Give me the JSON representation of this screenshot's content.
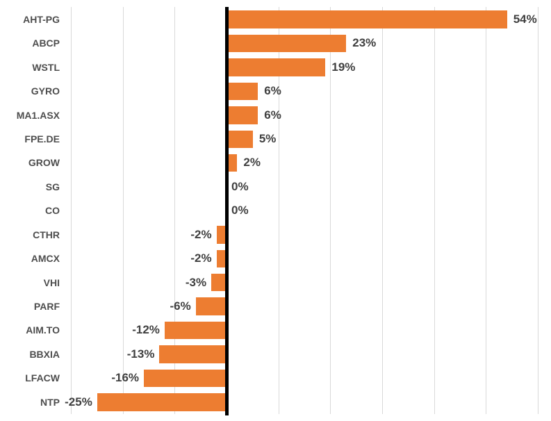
{
  "chart_data": {
    "type": "bar",
    "orientation": "horizontal",
    "title": "",
    "xlabel": "",
    "ylabel": "",
    "legend": "none",
    "grid": true,
    "xlim": [
      -30,
      60
    ],
    "gridline_step": 10,
    "categories": [
      "AHT-PG",
      "ABCP",
      "WSTL",
      "GYRO",
      "MA1.ASX",
      "FPE.DE",
      "GROW",
      "SG",
      "CO",
      "CTHR",
      "AMCX",
      "VHI",
      "PARF",
      "AIM.TO",
      "BBXIA",
      "LFACW",
      "NTP"
    ],
    "values": [
      54,
      23,
      19,
      6,
      6,
      5,
      2,
      0,
      0,
      -2,
      -2,
      -3,
      -6,
      -12,
      -13,
      -16,
      -25
    ],
    "data_labels": [
      "54%",
      "23%",
      "19%",
      "6%",
      "6%",
      "5%",
      "2%",
      "0%",
      "0%",
      "-2%",
      "-2%",
      "-3%",
      "-6%",
      "-12%",
      "-13%",
      "-16%",
      "-25%"
    ],
    "colors": {
      "bar": "#ED7D31",
      "gridline": "#D9D9D9",
      "zero_axis": "#000000",
      "category_label": "#4D4D4D",
      "data_label": "#404040",
      "background": "#FFFFFF"
    }
  }
}
